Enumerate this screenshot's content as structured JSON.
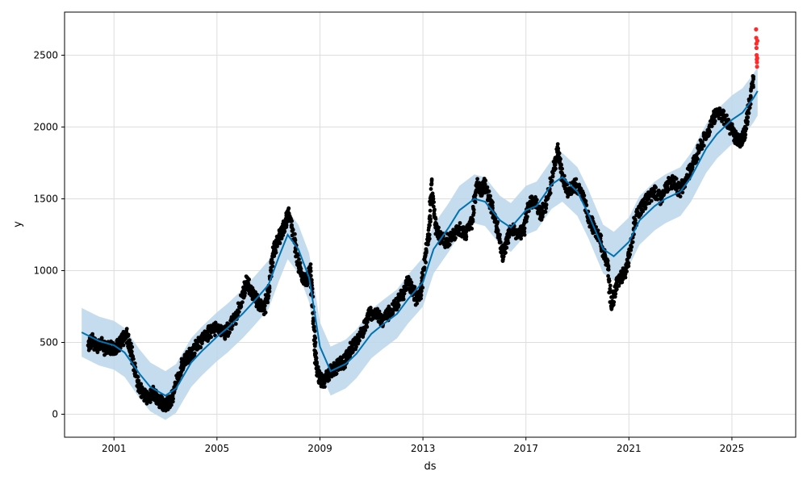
{
  "chart_data": {
    "type": "scatter",
    "title": "",
    "xlabel": "ds",
    "ylabel": "y",
    "x_tick_labels": [
      "2001",
      "2005",
      "2009",
      "2013",
      "2017",
      "2021",
      "2025"
    ],
    "y_tick_labels": [
      "0",
      "500",
      "1000",
      "1500",
      "2000",
      "2500"
    ],
    "y_ticks": [
      0,
      500,
      1000,
      1500,
      2000,
      2500
    ],
    "xlim": [
      "1999-01-31",
      "2027-06-25"
    ],
    "ylim": [
      -160,
      2800
    ],
    "grid": true,
    "legend": "none",
    "colors": {
      "observed": "#000000",
      "forecast": "#0072b2",
      "interval": "#bad6ea",
      "outliers": "#ff2b2b"
    },
    "series": [
      {
        "kind": "observed",
        "points": [
          [
            "2000-01-01",
            480
          ],
          [
            "2000-03-01",
            520
          ],
          [
            "2000-05-01",
            470
          ],
          [
            "2000-07-01",
            500
          ],
          [
            "2000-09-01",
            450
          ],
          [
            "2000-11-01",
            470
          ],
          [
            "2001-01-01",
            450
          ],
          [
            "2001-03-01",
            480
          ],
          [
            "2001-05-01",
            520
          ],
          [
            "2001-07-01",
            560
          ],
          [
            "2001-09-01",
            440
          ],
          [
            "2001-11-01",
            290
          ],
          [
            "2002-01-01",
            180
          ],
          [
            "2002-03-01",
            130
          ],
          [
            "2002-05-01",
            110
          ],
          [
            "2002-07-01",
            150
          ],
          [
            "2002-09-01",
            110
          ],
          [
            "2002-11-01",
            80
          ],
          [
            "2003-01-01",
            60
          ],
          [
            "2003-03-01",
            90
          ],
          [
            "2003-05-01",
            150
          ],
          [
            "2003-07-01",
            250
          ],
          [
            "2003-09-01",
            350
          ],
          [
            "2003-11-01",
            390
          ],
          [
            "2004-01-01",
            420
          ],
          [
            "2004-04-01",
            480
          ],
          [
            "2004-07-01",
            530
          ],
          [
            "2004-10-01",
            580
          ],
          [
            "2005-01-01",
            600
          ],
          [
            "2005-04-01",
            560
          ],
          [
            "2005-07-01",
            600
          ],
          [
            "2005-10-01",
            680
          ],
          [
            "2006-01-01",
            820
          ],
          [
            "2006-03-01",
            920
          ],
          [
            "2006-05-01",
            850
          ],
          [
            "2006-07-01",
            800
          ],
          [
            "2006-09-01",
            760
          ],
          [
            "2006-11-01",
            730
          ],
          [
            "2007-01-01",
            850
          ],
          [
            "2007-03-01",
            1100
          ],
          [
            "2007-05-01",
            1200
          ],
          [
            "2007-07-01",
            1260
          ],
          [
            "2007-09-01",
            1330
          ],
          [
            "2007-10-15",
            1400
          ],
          [
            "2008-01-01",
            1220
          ],
          [
            "2008-03-01",
            1050
          ],
          [
            "2008-05-01",
            950
          ],
          [
            "2008-07-01",
            920
          ],
          [
            "2008-08-15",
            1000
          ],
          [
            "2008-10-01",
            650
          ],
          [
            "2008-11-01",
            400
          ],
          [
            "2008-12-01",
            280
          ],
          [
            "2009-02-01",
            220
          ],
          [
            "2009-04-01",
            250
          ],
          [
            "2009-06-01",
            300
          ],
          [
            "2009-08-01",
            320
          ],
          [
            "2009-10-01",
            350
          ],
          [
            "2009-12-01",
            360
          ],
          [
            "2010-02-01",
            400
          ],
          [
            "2010-04-01",
            470
          ],
          [
            "2010-06-01",
            500
          ],
          [
            "2010-09-01",
            580
          ],
          [
            "2010-12-01",
            690
          ],
          [
            "2011-03-01",
            720
          ],
          [
            "2011-06-01",
            650
          ],
          [
            "2011-09-01",
            700
          ],
          [
            "2011-12-01",
            750
          ],
          [
            "2012-03-01",
            820
          ],
          [
            "2012-06-01",
            920
          ],
          [
            "2012-08-01",
            870
          ],
          [
            "2012-10-01",
            800
          ],
          [
            "2012-12-01",
            850
          ],
          [
            "2013-02-01",
            1100
          ],
          [
            "2013-04-01",
            1250
          ],
          [
            "2013-05-01",
            1600
          ],
          [
            "2013-07-01",
            1300
          ],
          [
            "2013-09-01",
            1230
          ],
          [
            "2013-12-01",
            1200
          ],
          [
            "2014-03-01",
            1250
          ],
          [
            "2014-06-01",
            1300
          ],
          [
            "2014-09-01",
            1250
          ],
          [
            "2014-12-01",
            1350
          ],
          [
            "2015-02-01",
            1600
          ],
          [
            "2015-04-01",
            1550
          ],
          [
            "2015-06-01",
            1600
          ],
          [
            "2015-08-01",
            1500
          ],
          [
            "2015-10-01",
            1400
          ],
          [
            "2015-12-01",
            1280
          ],
          [
            "2016-02-01",
            1100
          ],
          [
            "2016-04-01",
            1200
          ],
          [
            "2016-06-01",
            1300
          ],
          [
            "2016-09-01",
            1250
          ],
          [
            "2016-12-01",
            1280
          ],
          [
            "2017-02-01",
            1450
          ],
          [
            "2017-05-01",
            1500
          ],
          [
            "2017-08-01",
            1380
          ],
          [
            "2017-11-01",
            1500
          ],
          [
            "2018-02-01",
            1700
          ],
          [
            "2018-04-01",
            1850
          ],
          [
            "2018-06-01",
            1650
          ],
          [
            "2018-09-01",
            1550
          ],
          [
            "2018-12-01",
            1600
          ],
          [
            "2019-03-01",
            1550
          ],
          [
            "2019-06-01",
            1380
          ],
          [
            "2019-09-01",
            1280
          ],
          [
            "2019-12-01",
            1200
          ],
          [
            "2020-03-01",
            1050
          ],
          [
            "2020-05-01",
            750
          ],
          [
            "2020-07-01",
            900
          ],
          [
            "2020-09-01",
            950
          ],
          [
            "2020-11-01",
            980
          ],
          [
            "2021-01-01",
            1100
          ],
          [
            "2021-04-01",
            1350
          ],
          [
            "2021-07-01",
            1450
          ],
          [
            "2021-10-01",
            1500
          ],
          [
            "2022-01-01",
            1550
          ],
          [
            "2022-04-01",
            1500
          ],
          [
            "2022-07-01",
            1600
          ],
          [
            "2022-10-01",
            1620
          ],
          [
            "2023-01-01",
            1550
          ],
          [
            "2023-04-01",
            1650
          ],
          [
            "2023-07-01",
            1750
          ],
          [
            "2023-10-01",
            1850
          ],
          [
            "2024-01-01",
            1950
          ],
          [
            "2024-04-01",
            2050
          ],
          [
            "2024-07-01",
            2100
          ],
          [
            "2024-10-01",
            2050
          ],
          [
            "2025-01-01",
            1980
          ],
          [
            "2025-03-01",
            1920
          ],
          [
            "2025-05-01",
            1900
          ],
          [
            "2025-07-01",
            1950
          ],
          [
            "2025-09-01",
            2150
          ],
          [
            "2025-11-01",
            2350
          ]
        ]
      },
      {
        "kind": "forecast",
        "points": [
          [
            "1999-10-01",
            570
          ],
          [
            "2000-06-01",
            510
          ],
          [
            "2001-01-01",
            480
          ],
          [
            "2001-06-01",
            430
          ],
          [
            "2002-01-01",
            280
          ],
          [
            "2002-06-01",
            190
          ],
          [
            "2003-01-01",
            130
          ],
          [
            "2003-06-01",
            180
          ],
          [
            "2004-01-01",
            360
          ],
          [
            "2004-06-01",
            440
          ],
          [
            "2005-01-01",
            540
          ],
          [
            "2005-06-01",
            600
          ],
          [
            "2006-01-01",
            700
          ],
          [
            "2006-06-01",
            780
          ],
          [
            "2007-01-01",
            900
          ],
          [
            "2007-06-01",
            1100
          ],
          [
            "2007-10-01",
            1250
          ],
          [
            "2008-03-01",
            1150
          ],
          [
            "2008-08-01",
            950
          ],
          [
            "2009-01-01",
            470
          ],
          [
            "2009-06-01",
            300
          ],
          [
            "2010-01-01",
            350
          ],
          [
            "2010-06-01",
            420
          ],
          [
            "2011-01-01",
            560
          ],
          [
            "2011-06-01",
            620
          ],
          [
            "2012-01-01",
            700
          ],
          [
            "2012-06-01",
            800
          ],
          [
            "2013-01-01",
            920
          ],
          [
            "2013-06-01",
            1150
          ],
          [
            "2014-01-01",
            1300
          ],
          [
            "2014-06-01",
            1420
          ],
          [
            "2015-01-01",
            1500
          ],
          [
            "2015-06-01",
            1480
          ],
          [
            "2016-01-01",
            1350
          ],
          [
            "2016-06-01",
            1300
          ],
          [
            "2017-01-01",
            1420
          ],
          [
            "2017-06-01",
            1450
          ],
          [
            "2018-01-01",
            1600
          ],
          [
            "2018-06-01",
            1650
          ],
          [
            "2019-01-01",
            1550
          ],
          [
            "2019-06-01",
            1400
          ],
          [
            "2020-01-01",
            1150
          ],
          [
            "2020-06-01",
            1100
          ],
          [
            "2021-01-01",
            1200
          ],
          [
            "2021-06-01",
            1350
          ],
          [
            "2022-01-01",
            1450
          ],
          [
            "2022-06-01",
            1500
          ],
          [
            "2023-01-01",
            1550
          ],
          [
            "2023-06-01",
            1650
          ],
          [
            "2024-01-01",
            1850
          ],
          [
            "2024-06-01",
            1950
          ],
          [
            "2025-01-01",
            2050
          ],
          [
            "2025-06-01",
            2100
          ],
          [
            "2025-11-01",
            2200
          ],
          [
            "2026-01-01",
            2250
          ]
        ],
        "interval_halfwidth": 170
      },
      {
        "kind": "outliers",
        "points": [
          [
            "2025-12-10",
            2680
          ],
          [
            "2025-12-12",
            2620
          ],
          [
            "2025-12-14",
            2580
          ],
          [
            "2025-12-16",
            2550
          ],
          [
            "2025-12-18",
            2500
          ],
          [
            "2025-12-20",
            2470
          ],
          [
            "2025-12-22",
            2450
          ],
          [
            "2025-12-24",
            2420
          ],
          [
            "2025-12-26",
            2480
          ],
          [
            "2025-12-28",
            2600
          ]
        ]
      }
    ]
  }
}
